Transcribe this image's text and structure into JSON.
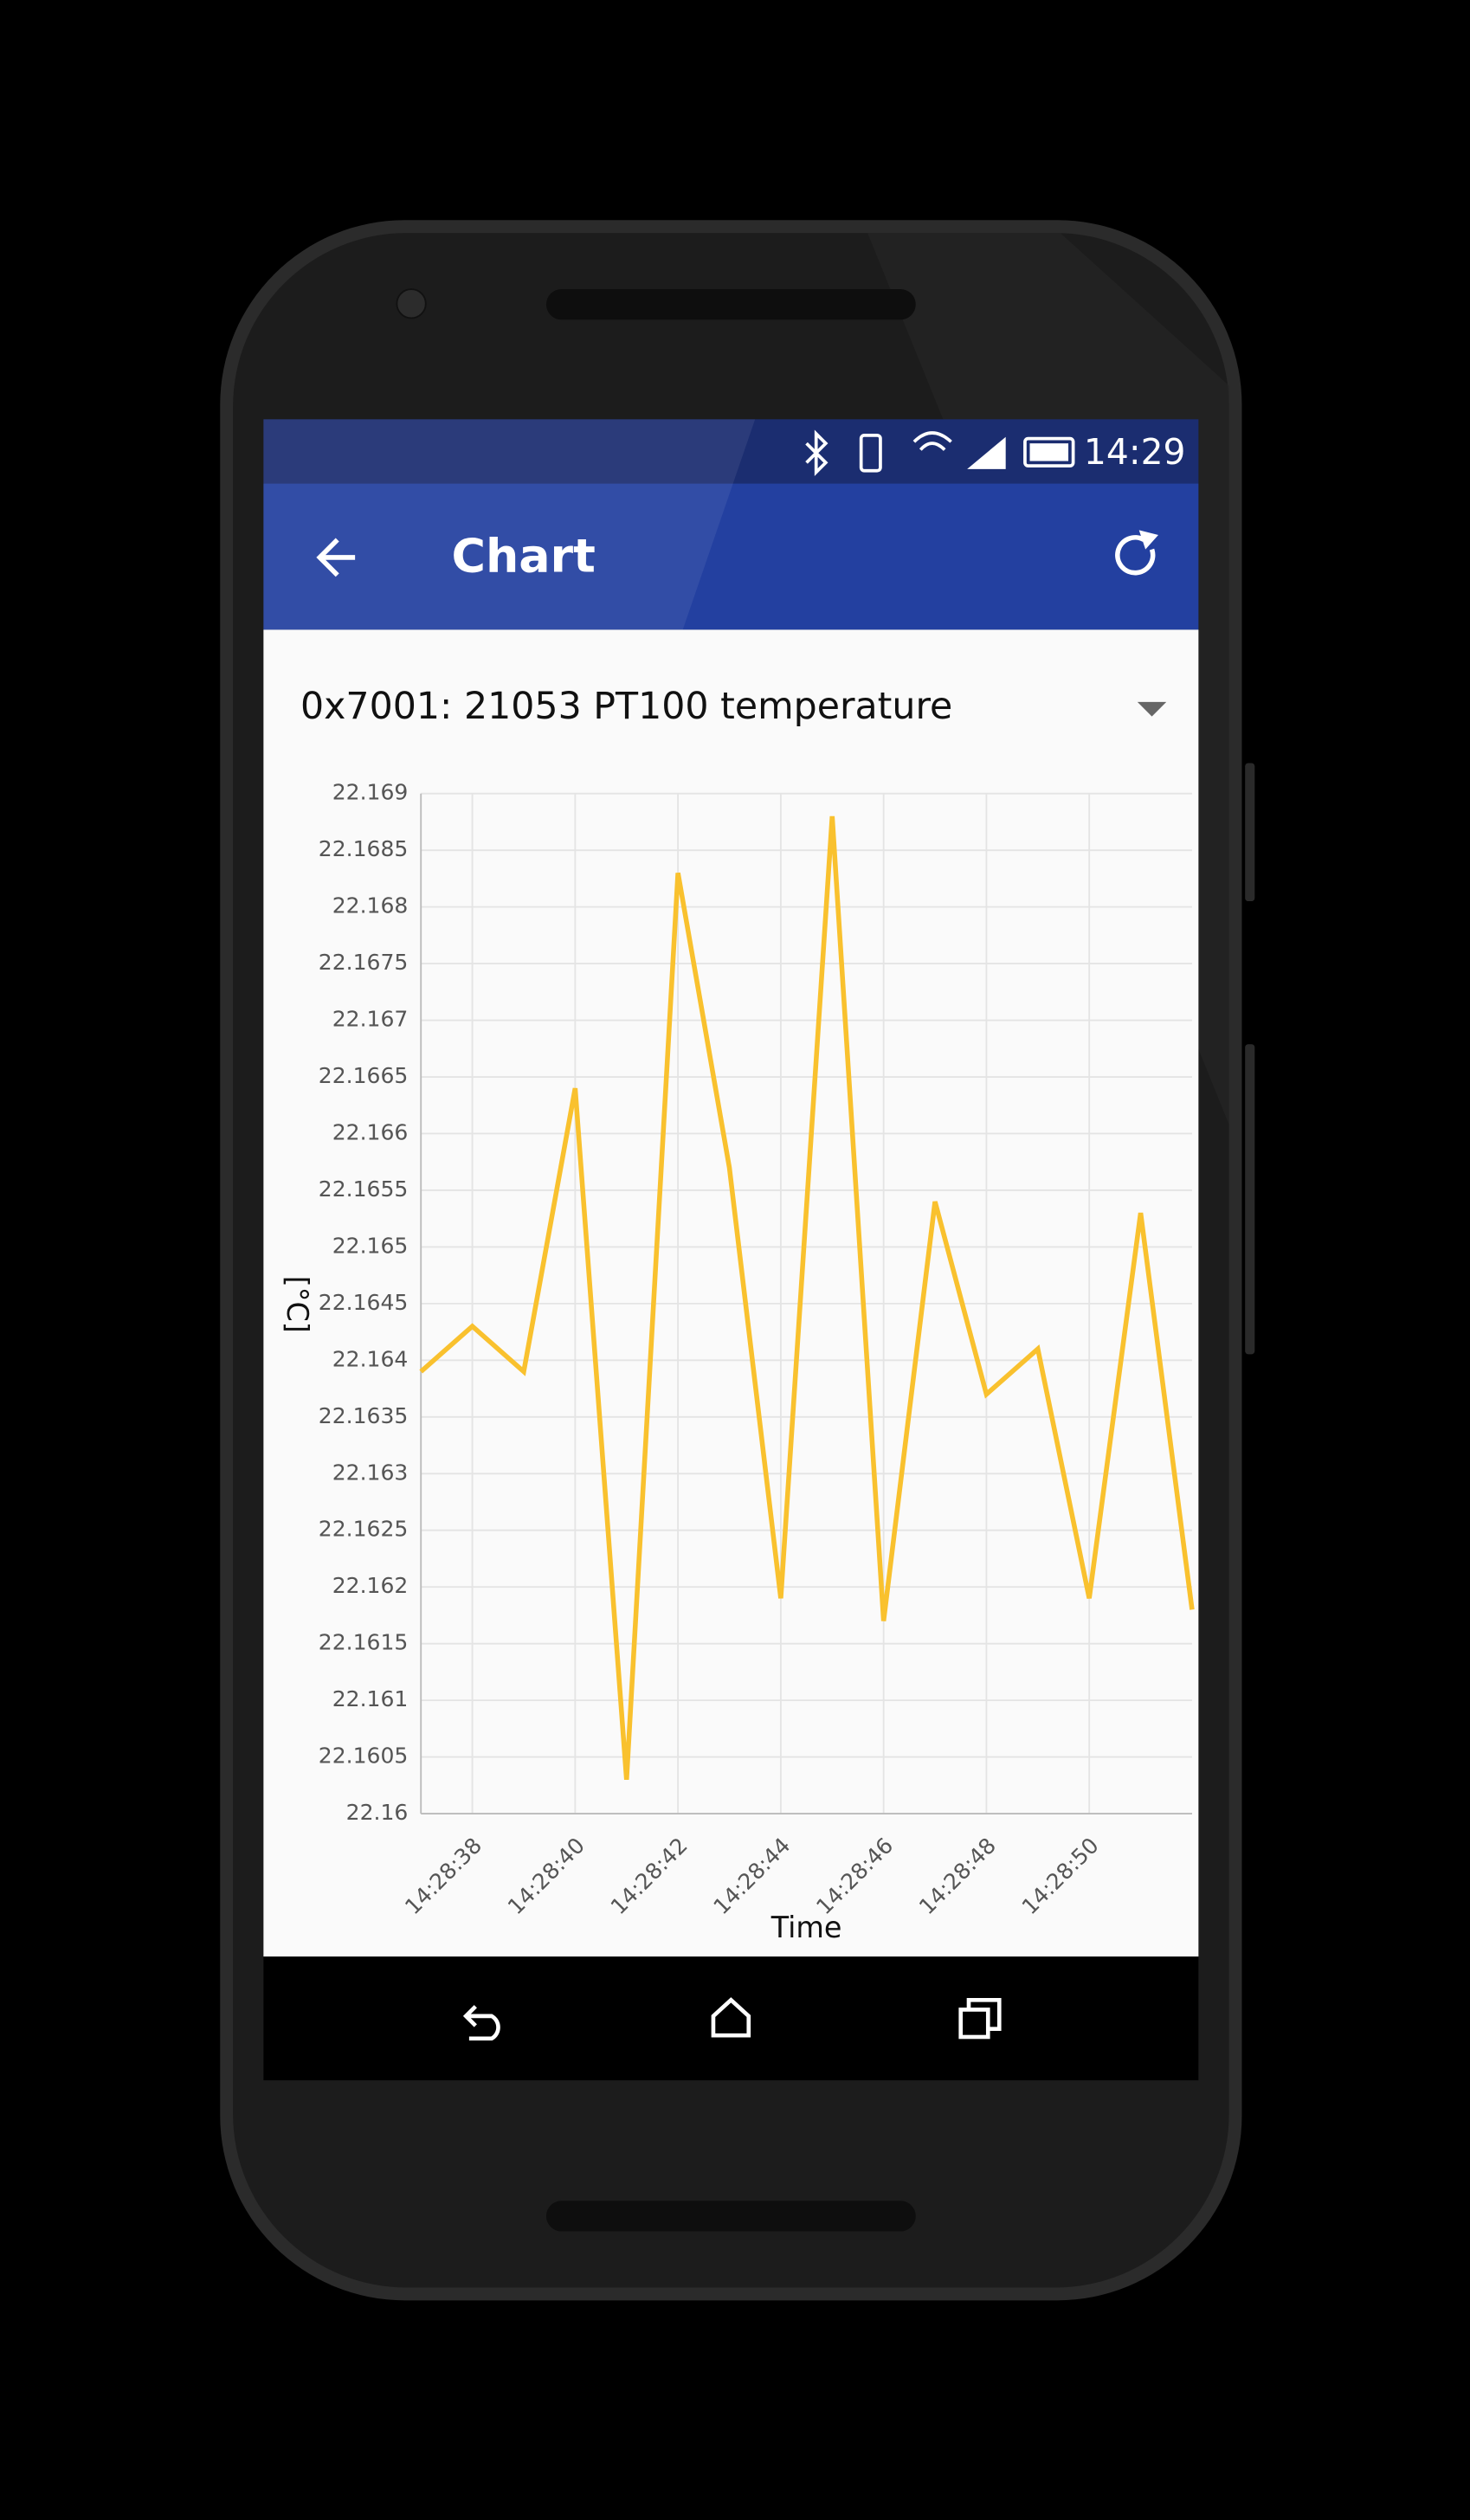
{
  "status_bar": {
    "time": "14:29"
  },
  "app_bar": {
    "title": "Chart"
  },
  "selector": {
    "label": "0x7001: 21053 PT100 temperature"
  },
  "chart_data": {
    "type": "line",
    "xlabel": "Time",
    "ylabel": "[°C]",
    "color": "#f9c12e",
    "grid": true,
    "x": [
      "14:28:37",
      "14:28:38",
      "14:28:39",
      "14:28:40",
      "14:28:41",
      "14:28:42",
      "14:28:43",
      "14:28:44",
      "14:28:45",
      "14:28:46",
      "14:28:47",
      "14:28:48",
      "14:28:49",
      "14:28:50",
      "14:28:51",
      "14:28:52"
    ],
    "values": [
      22.1639,
      22.1643,
      22.1639,
      22.1664,
      22.1603,
      22.1683,
      22.1657,
      22.1619,
      22.1688,
      22.1617,
      22.1654,
      22.1637,
      22.1641,
      22.1619,
      22.1653,
      22.1618
    ],
    "xlim": [
      "14:28:37",
      "14:28:52"
    ],
    "xticks": [
      "14:28:38",
      "14:28:40",
      "14:28:42",
      "14:28:44",
      "14:28:46",
      "14:28:48",
      "14:28:50"
    ],
    "ylim": [
      22.16,
      22.169
    ],
    "yticks": [
      22.16,
      22.1605,
      22.161,
      22.1615,
      22.162,
      22.1625,
      22.163,
      22.1635,
      22.164,
      22.1645,
      22.165,
      22.1655,
      22.166,
      22.1665,
      22.167,
      22.1675,
      22.168,
      22.1685,
      22.169
    ]
  }
}
